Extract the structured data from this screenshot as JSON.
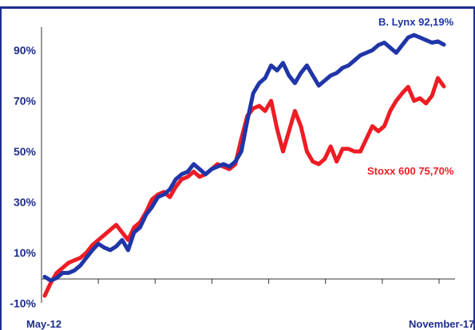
{
  "colors": {
    "frame": "#1e2d8c",
    "lynx": "#1f35a8",
    "stoxx": "#ee1c24",
    "axis": "#333333",
    "text": "#1e2d8c"
  },
  "chart_data": {
    "type": "line",
    "title": "",
    "xlabel": "",
    "ylabel": "",
    "ylim": [
      -10,
      100
    ],
    "yticks": [
      "-10%",
      "10%",
      "30%",
      "50%",
      "70%",
      "90%"
    ],
    "ytick_values": [
      -10,
      10,
      30,
      50,
      70,
      90
    ],
    "xticks": [
      "May-12",
      "November-17"
    ],
    "grid": false,
    "legend": "inline labels",
    "series": [
      {
        "name": "B. Lynx 92,19%",
        "color": "#1f35a8",
        "values": [
          0.5,
          -1,
          0,
          2,
          2,
          3,
          5,
          8,
          11,
          13.5,
          12,
          11,
          12.5,
          15,
          11,
          18,
          20,
          25,
          28,
          32,
          33,
          35,
          39,
          41,
          42,
          45,
          43,
          41,
          43,
          44,
          45,
          44,
          46,
          50,
          62,
          73,
          77,
          79,
          84,
          82,
          85,
          80,
          77,
          81,
          84,
          80,
          76,
          78,
          80,
          81,
          83,
          84,
          86,
          88,
          89,
          90,
          92,
          93,
          91,
          89,
          92,
          95,
          96,
          95,
          94,
          93,
          93.5,
          92.2
        ]
      },
      {
        "name": "Stoxx 600 75,70%",
        "color": "#ee1c24",
        "values": [
          -7,
          -2,
          2,
          4,
          6,
          7,
          8,
          10,
          13,
          15,
          17,
          19,
          21,
          18,
          15,
          20,
          22,
          26,
          31,
          33,
          34,
          32,
          36,
          39,
          40,
          42,
          40,
          41,
          43,
          45,
          44,
          43,
          45,
          55,
          64,
          67,
          68,
          66,
          70,
          59,
          50,
          58,
          66,
          60,
          50,
          46,
          45,
          47,
          52,
          46,
          51,
          51,
          50,
          50,
          55,
          60,
          58,
          60,
          66,
          70,
          73,
          75.5,
          70,
          71,
          69,
          72,
          79,
          75.7
        ]
      }
    ]
  }
}
